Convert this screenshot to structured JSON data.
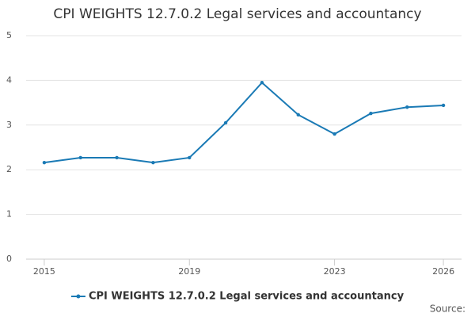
{
  "chart_data": {
    "type": "line",
    "title": "CPI WEIGHTS 12.7.0.2 Legal services and accountancy",
    "x": [
      2015,
      2016,
      2017,
      2018,
      2019,
      2020,
      2021,
      2022,
      2023,
      2024,
      2025,
      2026
    ],
    "series": [
      {
        "name": "CPI WEIGHTS 12.7.0.2 Legal services and accountancy",
        "color": "#1a7ab5",
        "values": [
          2.16,
          2.27,
          2.27,
          2.16,
          2.27,
          3.05,
          3.95,
          3.23,
          2.8,
          3.26,
          3.4,
          3.44
        ]
      }
    ],
    "xlim": [
      2014.5,
      2026.5
    ],
    "xticks": [
      2015,
      2019,
      2023,
      2026
    ],
    "ylim": [
      0,
      5
    ],
    "yticks": [
      0,
      1,
      2,
      3,
      4,
      5
    ],
    "grid": true,
    "legend": "bottom",
    "source": "Source:"
  }
}
